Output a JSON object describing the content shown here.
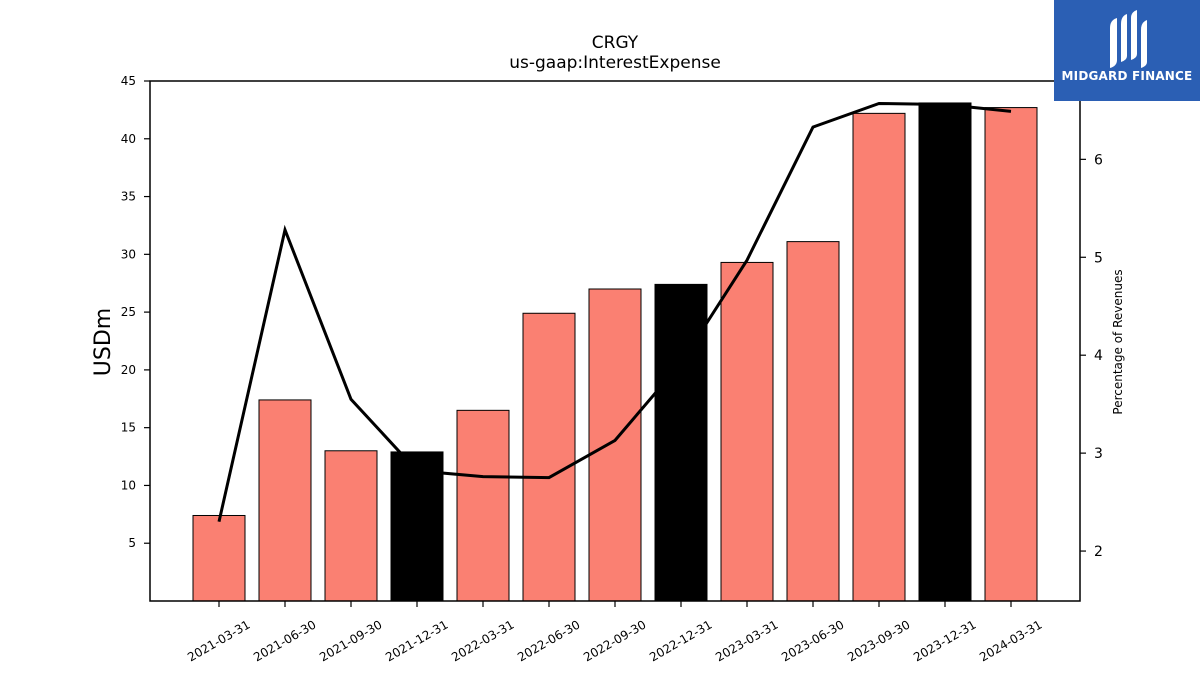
{
  "logo": {
    "text": "MIDGARD FINANCE",
    "background": "#2b5fb4",
    "icon": "midgard-logo-mark"
  },
  "chart_data": {
    "type": "bar",
    "title": "CRGY",
    "subtitle": "us-gaap:InterestExpense",
    "ylabel": "USDm",
    "ylabel_right": "Percentage of Revenues",
    "categories": [
      "2021-03-31",
      "2021-06-30",
      "2021-09-30",
      "2021-12-31",
      "2022-03-31",
      "2022-06-30",
      "2022-09-30",
      "2022-12-31",
      "2023-03-31",
      "2023-06-30",
      "2023-09-30",
      "2023-12-31",
      "2024-03-31"
    ],
    "bar_values": [
      7.4,
      17.4,
      13.0,
      12.9,
      16.5,
      24.9,
      27.0,
      27.4,
      29.3,
      31.1,
      42.2,
      43.1,
      42.7
    ],
    "bar_colors": [
      "#fa8072",
      "#fa8072",
      "#fa8072",
      "#000000",
      "#fa8072",
      "#fa8072",
      "#fa8072",
      "#000000",
      "#fa8072",
      "#fa8072",
      "#fa8072",
      "#000000",
      "#fa8072"
    ],
    "line_values": [
      2.3,
      5.28,
      3.55,
      2.82,
      2.76,
      2.75,
      3.13,
      3.92,
      4.97,
      6.33,
      6.57,
      6.56,
      6.49
    ],
    "line_color": "#000000",
    "ylim": [
      0,
      45
    ],
    "yticks": [
      5,
      10,
      15,
      20,
      25,
      30,
      35,
      40,
      45
    ],
    "ylim_right": [
      1.49,
      6.8
    ],
    "yticks_right": [
      2,
      3,
      4,
      5,
      6
    ],
    "grid": false,
    "legend": "none"
  }
}
